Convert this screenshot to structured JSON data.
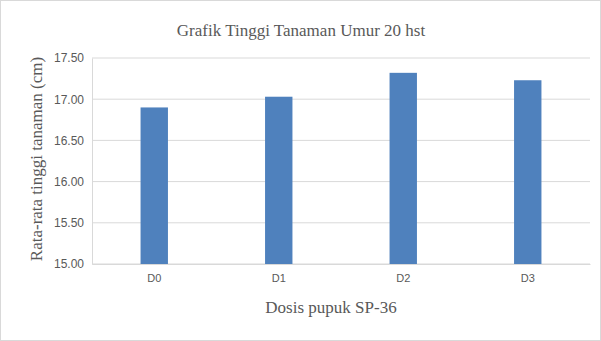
{
  "chart_data": {
    "type": "bar",
    "title": "Grafik Tinggi Tanaman Umur 20 hst",
    "x_label": "Dosis pupuk SP-36",
    "y_label": "Rata-rata tinggi tanaman (cm)",
    "categories": [
      "D0",
      "D1",
      "D2",
      "D3"
    ],
    "values": [
      16.9,
      17.03,
      17.32,
      17.23
    ],
    "color": "#4f81bd",
    "ylim": [
      15,
      17.5
    ],
    "yticks": [
      {
        "value": 15,
        "label": "15.00"
      },
      {
        "value": 15.5,
        "label": "15.50"
      },
      {
        "value": 16,
        "label": "16.00"
      },
      {
        "value": 16.5,
        "label": "16.50"
      },
      {
        "value": 17,
        "label": "17.00"
      },
      {
        "value": 17.5,
        "label": "17.50"
      }
    ],
    "grid": true
  }
}
